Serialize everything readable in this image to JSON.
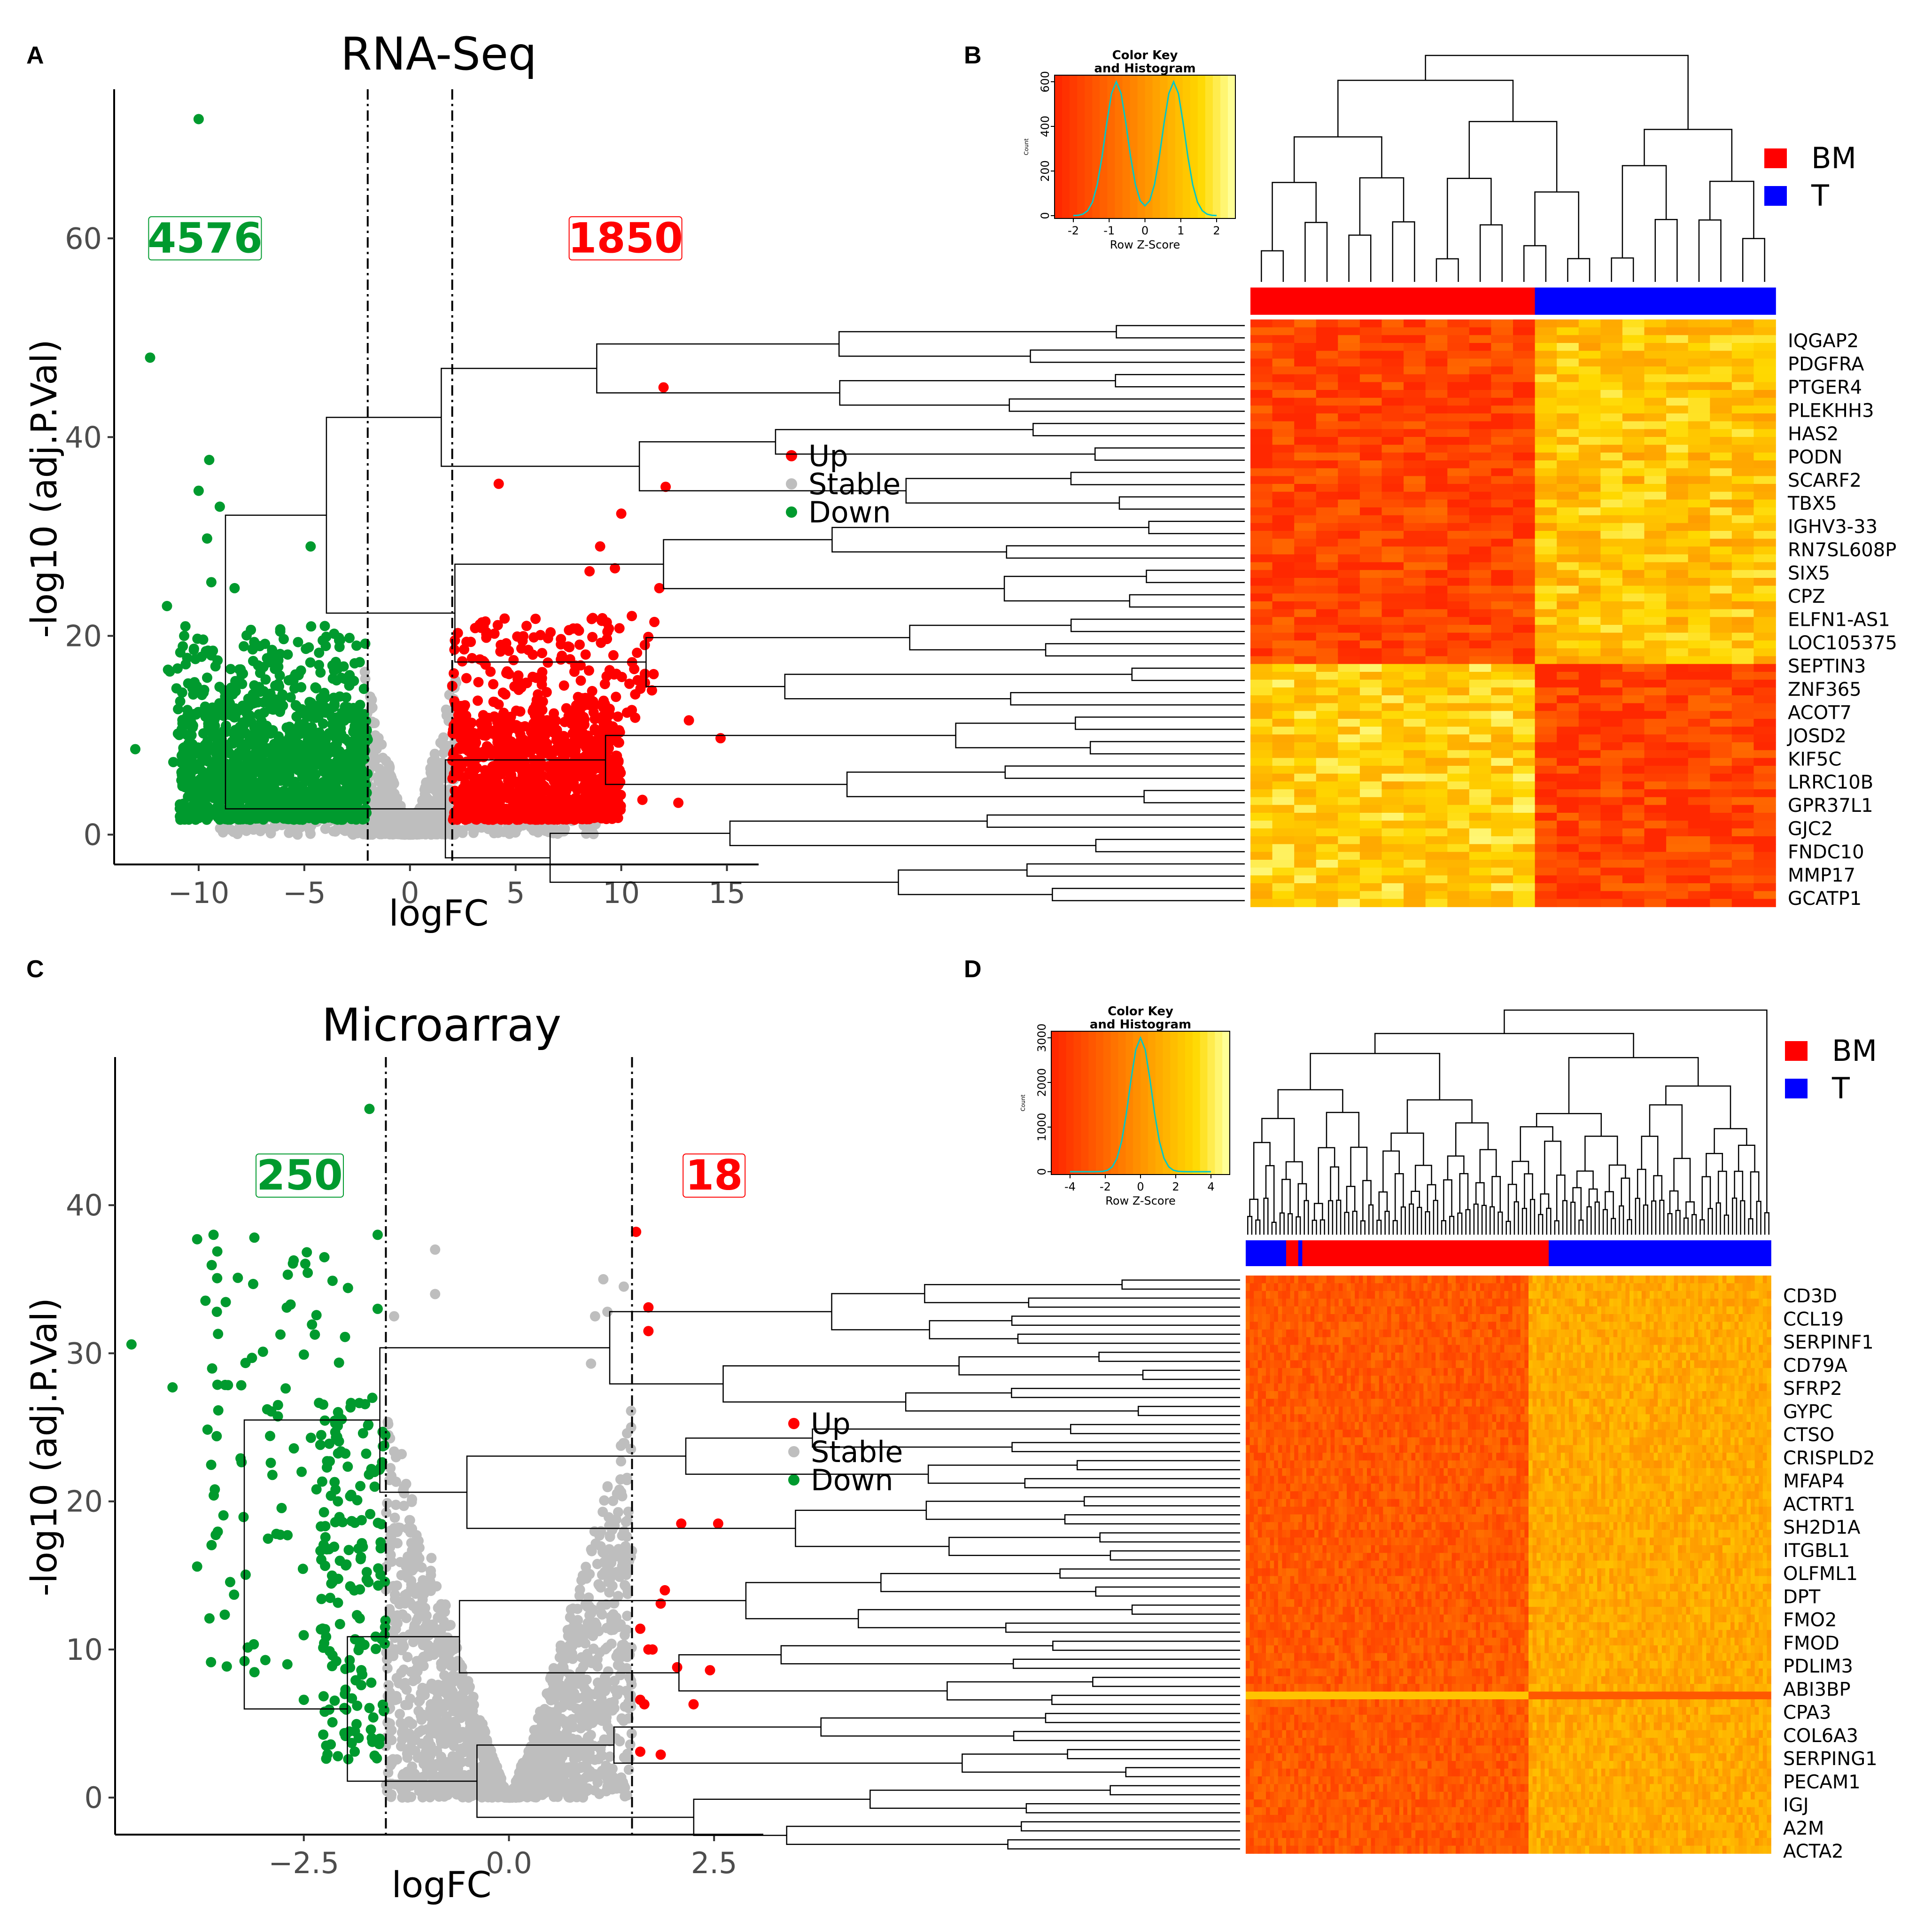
{
  "chart_data": [
    {
      "panel": "A",
      "type": "scatter",
      "title": "RNA-Seq",
      "xlabel": "logFC",
      "ylabel": "-log10 (adj.P.Val)",
      "xlim": [
        -14,
        16.5
      ],
      "ylim": [
        -3,
        75
      ],
      "xticks": [
        -10,
        -5,
        0,
        5,
        10,
        15
      ],
      "xtick_labels": [
        "−10",
        "−5",
        "0",
        "5",
        "10",
        "15"
      ],
      "yticks": [
        0,
        20,
        40,
        60
      ],
      "ytick_labels": [
        "0",
        "20",
        "40",
        "60"
      ],
      "thresholds": [
        -2,
        2
      ],
      "counts": {
        "down": "4576",
        "up": "1850"
      },
      "count_positions": {
        "down": [
          -9.7,
          60
        ],
        "up": [
          10.2,
          60
        ]
      },
      "legend": [
        "Up",
        "Stable",
        "Down"
      ],
      "colors": {
        "up": "#ff0000",
        "stable": "#bebebe",
        "down": "#009a2e"
      },
      "outliers": [
        [
          -10,
          72
        ],
        [
          -12.3,
          48
        ],
        [
          12,
          45
        ],
        [
          12.1,
          35
        ],
        [
          4.2,
          35.3
        ],
        [
          -9.5,
          37.7
        ],
        [
          -10,
          34.6
        ],
        [
          -9,
          33
        ],
        [
          -9.6,
          29.8
        ],
        [
          -4.7,
          29
        ],
        [
          -13,
          8.6
        ],
        [
          14.7,
          9.7
        ],
        [
          13.2,
          11.5
        ],
        [
          12.7,
          3.2
        ],
        [
          -11.5,
          23
        ],
        [
          10,
          32.3
        ],
        [
          9,
          29
        ],
        [
          -9.4,
          25.4
        ],
        [
          -8.3,
          24.8
        ],
        [
          11.8,
          24.8
        ],
        [
          9.7,
          26.8
        ],
        [
          8.5,
          26.5
        ],
        [
          10.5,
          22
        ],
        [
          -11.2,
          7.3
        ],
        [
          11,
          3.5
        ]
      ],
      "clouds": [
        {
          "cls": "stable",
          "n": 650,
          "seed": 11,
          "xmin": -2.2,
          "xmax": 2.2,
          "shape": "v",
          "ymax": 17
        },
        {
          "cls": "stable",
          "n": 280,
          "seed": 12,
          "xmin": -9,
          "xmax": 9,
          "shape": "band",
          "ymin": 0,
          "ymax": 2.5
        },
        {
          "cls": "down",
          "n": 1100,
          "seed": 13,
          "xmin": -11,
          "xmax": -2,
          "shape": "blob",
          "ymin": 1.5,
          "ymax": 13
        },
        {
          "cls": "down",
          "n": 150,
          "seed": 14,
          "xmin": -11.5,
          "xmax": -2,
          "shape": "sparse",
          "ymin": 12,
          "ymax": 21
        },
        {
          "cls": "up",
          "n": 1000,
          "seed": 15,
          "xmin": 2,
          "xmax": 10,
          "shape": "blob",
          "ymin": 1.5,
          "ymax": 12
        },
        {
          "cls": "up",
          "n": 160,
          "seed": 16,
          "xmin": 2,
          "xmax": 12,
          "shape": "sparse",
          "ymin": 11,
          "ymax": 22
        }
      ]
    },
    {
      "panel": "C",
      "type": "scatter",
      "title": "Microarray",
      "xlabel": "logFC",
      "ylabel": "-log10 (adj.P.Val)",
      "xlim": [
        -4.8,
        3.1
      ],
      "ylim": [
        -2.5,
        50
      ],
      "xticks": [
        -2.5,
        0.0,
        2.5
      ],
      "xtick_labels": [
        "−2.5",
        "0.0",
        "2.5"
      ],
      "yticks": [
        0,
        10,
        20,
        30,
        40
      ],
      "ytick_labels": [
        "0",
        "10",
        "20",
        "30",
        "40"
      ],
      "thresholds": [
        -1.5,
        1.5
      ],
      "counts": {
        "down": "250",
        "up": "18"
      },
      "count_positions": {
        "down": [
          -2.55,
          42
        ],
        "up": [
          2.5,
          42
        ]
      },
      "legend": [
        "Up",
        "Stable",
        "Down"
      ],
      "colors": {
        "up": "#ff0000",
        "stable": "#bebebe",
        "down": "#009a2e"
      },
      "outliers": [
        [
          -1.7,
          46.5
        ],
        [
          -4.6,
          30.6
        ],
        [
          -4.1,
          27.7
        ],
        [
          -3.8,
          15.6
        ],
        [
          -3.65,
          12.1
        ],
        [
          -3.35,
          13.7
        ],
        [
          -2.7,
          9
        ],
        [
          -2.5,
          6.6
        ],
        [
          -1.6,
          38
        ],
        [
          -1.6,
          33
        ],
        [
          -3.8,
          37.7
        ],
        [
          -3.6,
          38
        ],
        [
          1.55,
          38.2
        ],
        [
          1.7,
          33.1
        ],
        [
          1.7,
          31.5
        ],
        [
          2.1,
          18.5
        ],
        [
          2.55,
          18.5
        ],
        [
          1.9,
          14
        ],
        [
          1.85,
          13.1
        ],
        [
          1.6,
          11.4
        ],
        [
          1.7,
          10
        ],
        [
          1.75,
          10
        ],
        [
          2.05,
          8.8
        ],
        [
          2.45,
          8.6
        ],
        [
          2.25,
          6.3
        ],
        [
          1.6,
          6.6
        ],
        [
          1.65,
          6.3
        ],
        [
          1.6,
          3.1
        ],
        [
          1.85,
          2.9
        ],
        [
          -0.9,
          37
        ],
        [
          -0.9,
          34
        ],
        [
          1.15,
          35
        ],
        [
          1.4,
          34.5
        ],
        [
          1.2,
          32.8
        ],
        [
          1.05,
          32.5
        ],
        [
          -1.4,
          32.5
        ],
        [
          1.0,
          29.3
        ]
      ],
      "clouds": [
        {
          "cls": "stable",
          "n": 1600,
          "seed": 21,
          "xmin": -1.5,
          "xmax": 1.5,
          "shape": "vm",
          "ymax": 27
        },
        {
          "cls": "down",
          "n": 160,
          "seed": 22,
          "xmin": -2.3,
          "xmax": -1.5,
          "shape": "col",
          "ymin": 2.5,
          "ymax": 27
        },
        {
          "cls": "down",
          "n": 90,
          "seed": 23,
          "xmin": -3.7,
          "xmax": -1.8,
          "shape": "sparse",
          "ymin": 8,
          "ymax": 38
        }
      ]
    },
    {
      "panel": "B",
      "type": "heatmap",
      "legend": [
        "BM",
        "T"
      ],
      "legend_colors": [
        "#ff0000",
        "#0000ff"
      ],
      "color_key": {
        "title": "Color Key",
        "subtitle": "and Histogram",
        "xlabel": "Row Z-Score",
        "ylabel": "Count",
        "xticks": [
          "-2",
          "-1",
          "0",
          "1",
          "2"
        ],
        "yticks": [
          "0",
          "200",
          "400",
          "600"
        ],
        "hist_peaks": [
          -1,
          1
        ]
      },
      "genes": [
        "IQGAP2",
        "PDGFRA",
        "PTGER4",
        "PLEKHH3",
        "HAS2",
        "PODN",
        "SCARF2",
        "TBX5",
        "IGHV3-33",
        "RN7SL608P",
        "SIX5",
        "CPZ",
        "ELFN1-AS1",
        "LOC105375",
        "SEPTIN3",
        "ZNF365",
        "ACOT7",
        "JOSD2",
        "KIF5C",
        "LRRC10B",
        "GPR37L1",
        "GJC2",
        "FNDC10",
        "MMP17",
        "GCATP1"
      ],
      "groups": {
        "BM": 13,
        "T": 11
      },
      "row_split": 0.58,
      "pattern": "strong"
    },
    {
      "panel": "D",
      "type": "heatmap",
      "legend": [
        "BM",
        "T"
      ],
      "legend_colors": [
        "#ff0000",
        "#0000ff"
      ],
      "color_key": {
        "title": "Color Key",
        "subtitle": "and Histogram",
        "xlabel": "Row Z-Score",
        "ylabel": "Count",
        "xticks": [
          "-4",
          "-2",
          "0",
          "2",
          "4"
        ],
        "yticks": [
          "0",
          "1000",
          "2000",
          "3000"
        ],
        "hist_peaks": [
          0
        ]
      },
      "genes": [
        "CD3D",
        "CCL19",
        "SERPINF1",
        "CD79A",
        "SFRP2",
        "GYPC",
        "CTSO",
        "CRISPLD2",
        "MFAP4",
        "ACTRT1",
        "SH2D1A",
        "ITGBL1",
        "OLFML1",
        "DPT",
        "FMO2",
        "FMOD",
        "PDLIM3",
        "ABI3BP",
        "CPA3",
        "COL6A3",
        "SERPING1",
        "PECAM1",
        "IGJ",
        "A2M",
        "ACTA2"
      ],
      "groups": {
        "BM": 70,
        "T": 60
      },
      "row_split": 0.0,
      "pattern": "weak"
    }
  ],
  "panel_labels": [
    "A",
    "B",
    "C",
    "D"
  ]
}
